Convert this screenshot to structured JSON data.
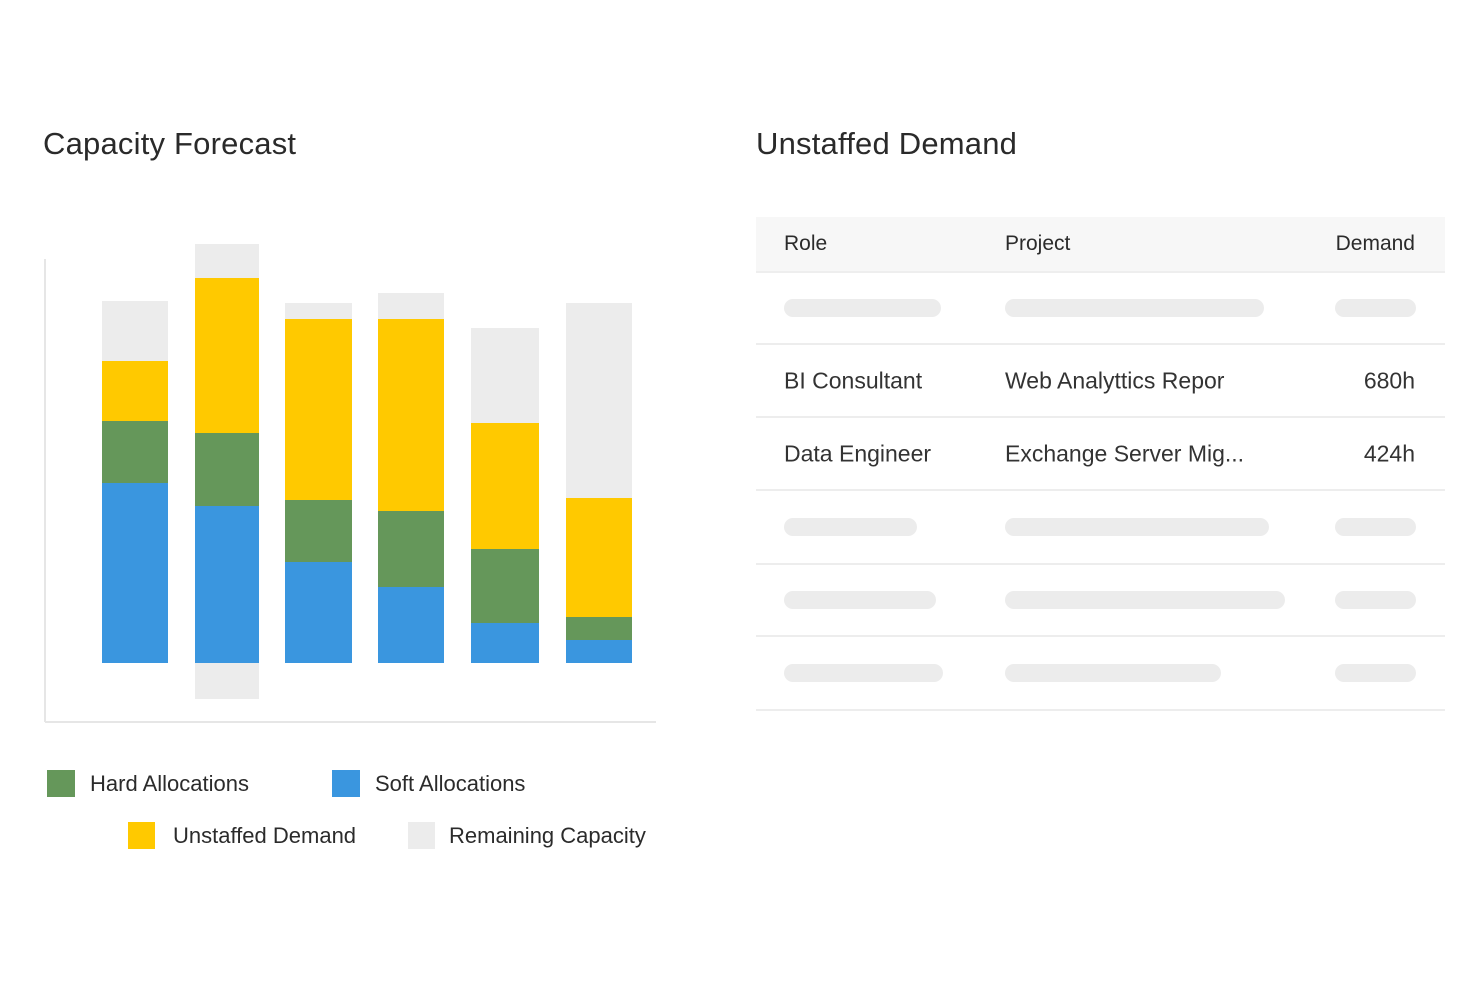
{
  "chart_data": {
    "type": "bar",
    "stacked": true,
    "title": "Capacity Forecast",
    "categories": [
      "",
      "",
      "",
      "",
      "",
      ""
    ],
    "series": [
      {
        "name": "Soft Allocations",
        "color": "#3a96df",
        "values": [
          180,
          157,
          101,
          76,
          40,
          23
        ]
      },
      {
        "name": "Hard Allocations",
        "color": "#65975a",
        "values": [
          62,
          73,
          62,
          76,
          74,
          23
        ]
      },
      {
        "name": "Unstaffed Demand",
        "color": "#ffc900",
        "values": [
          60,
          155,
          181,
          192,
          126,
          119
        ]
      },
      {
        "name": "Remaining Capacity",
        "color": "#ececec",
        "values": [
          60,
          34,
          16,
          26,
          95,
          195
        ]
      }
    ],
    "below_baseline": {
      "name": "Remaining Capacity",
      "values": [
        0,
        36,
        0,
        0,
        0,
        0
      ]
    },
    "axes_shown": false,
    "grid": false,
    "legend_position": "bottom"
  },
  "legend": [
    {
      "label": "Hard Allocations",
      "color": "#65975a"
    },
    {
      "label": "Soft Allocations",
      "color": "#3a96df"
    },
    {
      "label": "Unstaffed Demand",
      "color": "#ffc900"
    },
    {
      "label": "Remaining Capacity",
      "color": "#ececec"
    }
  ],
  "table": {
    "title": "Unstaffed Demand",
    "headers": {
      "role": "Role",
      "project": "Project",
      "demand": "Demand"
    },
    "rows": [
      {
        "placeholder": true
      },
      {
        "role": "BI Consultant",
        "project": "Web Analyttics Repor",
        "demand": "680h"
      },
      {
        "role": "Data Engineer",
        "project": "Exchange Server Mig...",
        "demand": "424h"
      },
      {
        "placeholder": true
      },
      {
        "placeholder": true
      },
      {
        "placeholder": true
      }
    ]
  }
}
